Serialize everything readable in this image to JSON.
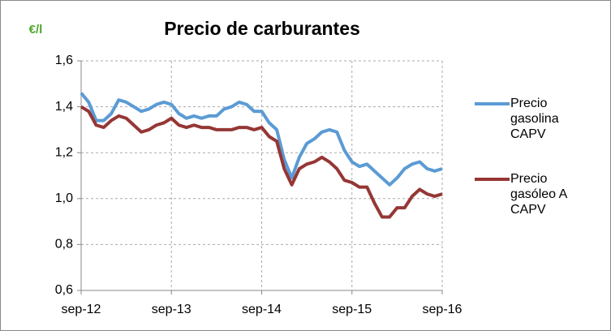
{
  "chart_data": {
    "type": "line",
    "title": "Precio de carburantes",
    "y_label": "€/l",
    "categories": [
      "sep-12",
      null,
      null,
      null,
      null,
      null,
      null,
      null,
      null,
      null,
      null,
      null,
      "sep-13",
      null,
      null,
      null,
      null,
      null,
      null,
      null,
      null,
      null,
      null,
      null,
      "sep-14",
      null,
      null,
      null,
      null,
      null,
      null,
      null,
      null,
      null,
      null,
      null,
      "sep-15",
      null,
      null,
      null,
      null,
      null,
      null,
      null,
      null,
      null,
      null,
      null,
      "sep-16"
    ],
    "series": [
      {
        "name": "Precio gasolina CAPV",
        "color": "#5b9bd5",
        "values": [
          1.46,
          1.42,
          1.34,
          1.34,
          1.37,
          1.43,
          1.42,
          1.4,
          1.38,
          1.39,
          1.41,
          1.42,
          1.41,
          1.37,
          1.35,
          1.36,
          1.35,
          1.36,
          1.36,
          1.39,
          1.4,
          1.42,
          1.41,
          1.38,
          1.38,
          1.33,
          1.3,
          1.17,
          1.09,
          1.18,
          1.24,
          1.26,
          1.29,
          1.3,
          1.29,
          1.21,
          1.16,
          1.14,
          1.15,
          1.12,
          1.09,
          1.06,
          1.09,
          1.13,
          1.15,
          1.16,
          1.13,
          1.12,
          1.13
        ]
      },
      {
        "name": "Precio gasóleo A CAPV",
        "color": "#953735",
        "values": [
          1.4,
          1.38,
          1.32,
          1.31,
          1.34,
          1.36,
          1.35,
          1.32,
          1.29,
          1.3,
          1.32,
          1.33,
          1.35,
          1.32,
          1.31,
          1.32,
          1.31,
          1.31,
          1.3,
          1.3,
          1.3,
          1.31,
          1.31,
          1.3,
          1.31,
          1.27,
          1.25,
          1.13,
          1.06,
          1.13,
          1.15,
          1.16,
          1.18,
          1.16,
          1.13,
          1.08,
          1.07,
          1.05,
          1.05,
          0.98,
          0.92,
          0.92,
          0.96,
          0.96,
          1.01,
          1.04,
          1.02,
          1.01,
          1.02
        ]
      }
    ],
    "ylim": [
      0.6,
      1.6
    ],
    "yticks": [
      {
        "value": 0.6,
        "label": "0,6"
      },
      {
        "value": 0.8,
        "label": "0,8"
      },
      {
        "value": 1.0,
        "label": "1,0"
      },
      {
        "value": 1.2,
        "label": "1,2"
      },
      {
        "value": 1.4,
        "label": "1,4"
      },
      {
        "value": 1.6,
        "label": "1,6"
      }
    ],
    "grid": true,
    "legend": "right"
  }
}
